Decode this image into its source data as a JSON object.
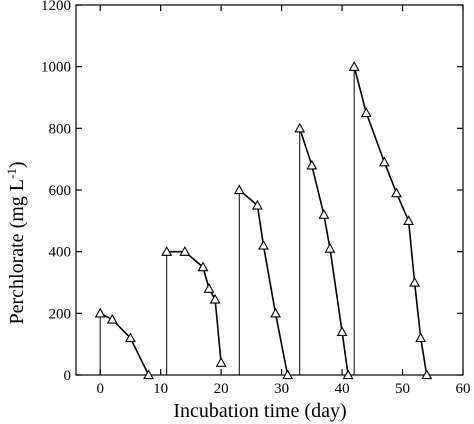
{
  "chart_data": {
    "type": "line",
    "title": "",
    "xlabel": "Incubation time (day)",
    "ylabel": "Perchlorate (mg L",
    "ylabel_superscript": "-1",
    "ylabel_suffix": ")",
    "xlim": [
      -4,
      60
    ],
    "ylim": [
      0,
      1200
    ],
    "xticks": [
      0,
      10,
      20,
      30,
      40,
      50,
      60
    ],
    "yticks": [
      0,
      200,
      400,
      600,
      800,
      1000,
      1200
    ],
    "marker": "open-triangle",
    "grid": false,
    "series": [
      {
        "x": [
          0,
          2,
          5,
          8
        ],
        "y": [
          200,
          180,
          120,
          0
        ]
      },
      {
        "x": [
          11,
          14,
          17,
          18,
          19,
          20
        ],
        "y": [
          400,
          400,
          350,
          280,
          245,
          40
        ]
      },
      {
        "x": [
          23,
          26,
          27,
          29,
          31
        ],
        "y": [
          600,
          550,
          420,
          200,
          0
        ]
      },
      {
        "x": [
          33,
          35,
          37,
          38,
          40,
          41
        ],
        "y": [
          800,
          680,
          520,
          410,
          140,
          0
        ]
      },
      {
        "x": [
          42,
          44,
          47,
          49,
          51,
          52,
          53,
          54
        ],
        "y": [
          1000,
          850,
          690,
          590,
          500,
          300,
          120,
          0
        ]
      }
    ],
    "spikes": [
      {
        "x": 0,
        "from": 0,
        "to": 200
      },
      {
        "x": 11,
        "from": 0,
        "to": 400
      },
      {
        "x": 23,
        "from": 0,
        "to": 600
      },
      {
        "x": 33,
        "from": 0,
        "to": 800
      },
      {
        "x": 42,
        "from": 0,
        "to": 1000
      }
    ]
  }
}
